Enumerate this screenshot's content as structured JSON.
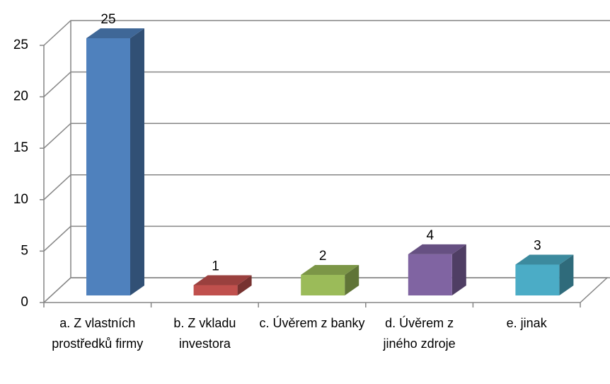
{
  "chart_data": {
    "type": "bar3d",
    "categories": [
      "a. Z vlastních prostředků firmy",
      "b. Z vkladu investora",
      "c. Úvěrem z banky",
      "d. Úvěrem z jiného zdroje",
      "e. jinak"
    ],
    "values": [
      25,
      1,
      2,
      4,
      3
    ],
    "colors": [
      "#4f81bd",
      "#c0504d",
      "#9bbb59",
      "#8064a2",
      "#4bacc6"
    ],
    "ylim": [
      0,
      25
    ],
    "yticks": [
      0,
      5,
      10,
      15,
      20,
      25
    ],
    "grid": true
  }
}
